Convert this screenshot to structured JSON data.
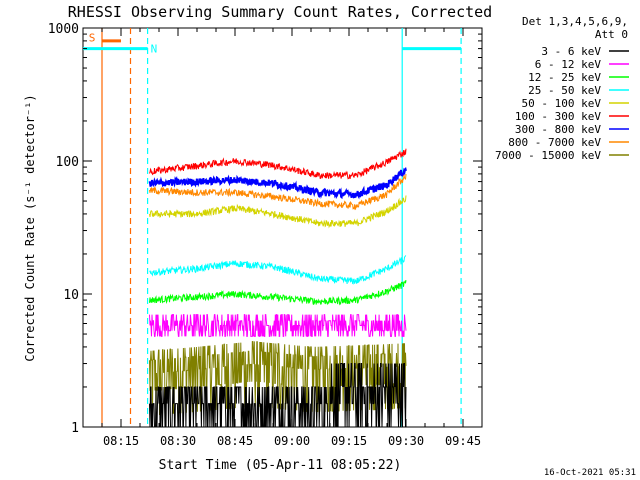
{
  "chart_data": {
    "type": "line",
    "title": "RHESSI Observing Summary Count Rates, Corrected",
    "xlabel": "Start Time (05-Apr-11 08:05:22)",
    "ylabel": "Corrected Count Rate (s⁻¹ detector⁻¹)",
    "yscale": "log",
    "ylim": [
      1,
      1000
    ],
    "xlim_minutes": [
      0,
      105
    ],
    "x_ticks": [
      {
        "label": "08:15",
        "min": 10
      },
      {
        "label": "08:30",
        "min": 25
      },
      {
        "label": "08:45",
        "min": 40
      },
      {
        "label": "09:00",
        "min": 55
      },
      {
        "label": "09:15",
        "min": 70
      },
      {
        "label": "09:30",
        "min": 85
      },
      {
        "label": "09:45",
        "min": 100
      }
    ],
    "y_ticks": [
      {
        "label": "1",
        "value": 1
      },
      {
        "label": "10",
        "value": 10
      },
      {
        "label": "100",
        "value": 100
      },
      {
        "label": "1000",
        "value": 1000
      }
    ],
    "legend_header": [
      "Det 1,3,4,5,6,9,",
      "Att 0"
    ],
    "series": [
      {
        "name": "3 - 6 keV",
        "color": "#000000",
        "x": [
          17.5,
          85
        ],
        "y": [
          1.2,
          2.2
        ],
        "noisy": true
      },
      {
        "name": "6 - 12 keV",
        "color": "#ff00ff",
        "x": [
          17.5,
          30,
          45,
          60,
          75,
          85
        ],
        "y": [
          5.7,
          5.7,
          5.7,
          5.7,
          5.7,
          5.7
        ],
        "noisy": true
      },
      {
        "name": "12 - 25 keV",
        "color": "#00ff00",
        "x": [
          17.5,
          30,
          40,
          50,
          62,
          72,
          80,
          85
        ],
        "y": [
          9.0,
          9.5,
          10.0,
          9.5,
          8.8,
          9.0,
          10.5,
          12.0
        ]
      },
      {
        "name": "25 - 50 keV",
        "color": "#00ffff",
        "x": [
          17.5,
          30,
          40,
          50,
          62,
          72,
          80,
          85
        ],
        "y": [
          14.5,
          15.5,
          17.0,
          16.0,
          13.0,
          12.5,
          15.5,
          18.5
        ]
      },
      {
        "name": "50 - 100 keV",
        "color": "#d4d400",
        "x": [
          17.5,
          30,
          40,
          50,
          62,
          72,
          80,
          85
        ],
        "y": [
          40,
          40,
          44,
          40,
          34,
          34,
          42,
          52
        ]
      },
      {
        "name": "100 - 300 keV",
        "color": "#ff0000",
        "x": [
          17.5,
          30,
          40,
          50,
          62,
          72,
          80,
          85
        ],
        "y": [
          83,
          92,
          100,
          93,
          78,
          78,
          98,
          118
        ]
      },
      {
        "name": "300 - 800 keV",
        "color": "#0000ff",
        "x": [
          17.5,
          30,
          40,
          50,
          62,
          72,
          80,
          85
        ],
        "y": [
          68,
          70,
          72,
          68,
          58,
          56,
          66,
          86
        ]
      },
      {
        "name": "800 - 7000 keV",
        "color": "#ff8800",
        "x": [
          17.5,
          30,
          40,
          50,
          62,
          72,
          80,
          85
        ],
        "y": [
          60,
          58,
          58,
          54,
          48,
          46,
          56,
          76
        ]
      },
      {
        "name": "7000 - 15000 keV",
        "color": "#808000",
        "x": [
          17.5,
          30,
          45,
          60,
          75,
          85
        ],
        "y": [
          2.8,
          3.0,
          3.3,
          3.0,
          3.1,
          3.2
        ],
        "noisy": true
      }
    ],
    "annotations": [
      {
        "label": "S",
        "color": "#ff6600",
        "x": 1.5,
        "y": 850
      },
      {
        "label": "N",
        "color": "#00ffff",
        "x": 17.8,
        "y": 700
      }
    ],
    "flags": [
      {
        "name": "saa",
        "color": "#ff6600",
        "x_range": [
          5,
          10
        ],
        "y": 800
      },
      {
        "name": "night-1",
        "color": "#00ffff",
        "x_range": [
          0,
          17
        ],
        "y": 700
      },
      {
        "name": "night-2",
        "color": "#00ffff",
        "x_range": [
          84,
          99.5
        ],
        "y": 700
      }
    ],
    "marker_lines": [
      {
        "x": 5,
        "color": "#ff6600",
        "style": "solid"
      },
      {
        "x": 12.5,
        "color": "#ff6600",
        "style": "dashed"
      },
      {
        "x": 17,
        "color": "#00ffff",
        "style": "dashed"
      },
      {
        "x": 84,
        "color": "#00ffff",
        "style": "solid"
      },
      {
        "x": 99.5,
        "color": "#00ffff",
        "style": "dashed"
      }
    ],
    "timestamp": "16-Oct-2021 05:31"
  }
}
